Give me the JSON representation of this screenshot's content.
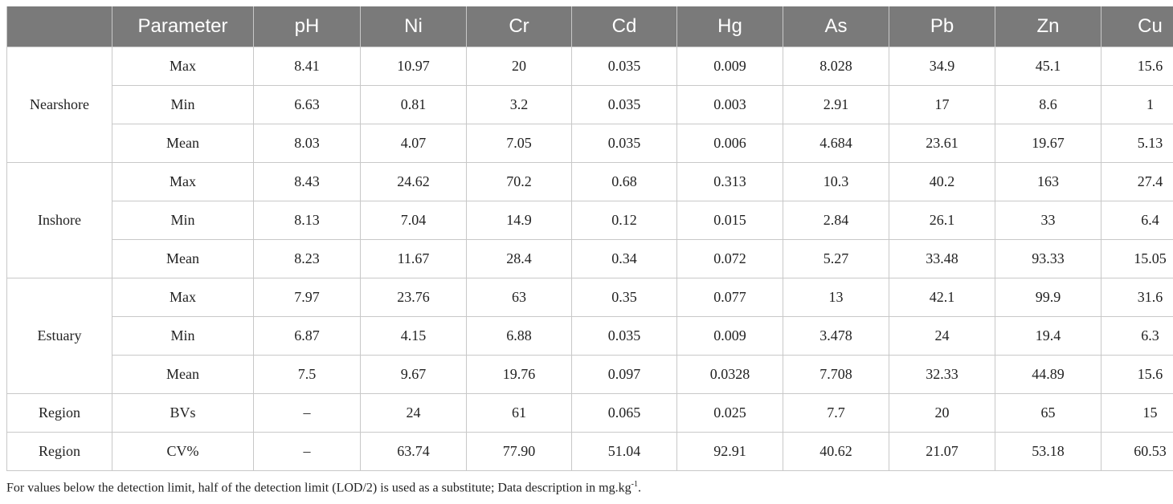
{
  "table": {
    "headers": [
      "",
      "Parameter",
      "pH",
      "Ni",
      "Cr",
      "Cd",
      "Hg",
      "As",
      "Pb",
      "Zn",
      "Cu"
    ],
    "groups": [
      {
        "name": "Nearshore",
        "rows": [
          [
            "Max",
            "8.41",
            "10.97",
            "20",
            "0.035",
            "0.009",
            "8.028",
            "34.9",
            "45.1",
            "15.6"
          ],
          [
            "Min",
            "6.63",
            "0.81",
            "3.2",
            "0.035",
            "0.003",
            "2.91",
            "17",
            "8.6",
            "1"
          ],
          [
            "Mean",
            "8.03",
            "4.07",
            "7.05",
            "0.035",
            "0.006",
            "4.684",
            "23.61",
            "19.67",
            "5.13"
          ]
        ]
      },
      {
        "name": "Inshore",
        "rows": [
          [
            "Max",
            "8.43",
            "24.62",
            "70.2",
            "0.68",
            "0.313",
            "10.3",
            "40.2",
            "163",
            "27.4"
          ],
          [
            "Min",
            "8.13",
            "7.04",
            "14.9",
            "0.12",
            "0.015",
            "2.84",
            "26.1",
            "33",
            "6.4"
          ],
          [
            "Mean",
            "8.23",
            "11.67",
            "28.4",
            "0.34",
            "0.072",
            "5.27",
            "33.48",
            "93.33",
            "15.05"
          ]
        ]
      },
      {
        "name": "Estuary",
        "rows": [
          [
            "Max",
            "7.97",
            "23.76",
            "63",
            "0.35",
            "0.077",
            "13",
            "42.1",
            "99.9",
            "31.6"
          ],
          [
            "Min",
            "6.87",
            "4.15",
            "6.88",
            "0.035",
            "0.009",
            "3.478",
            "24",
            "19.4",
            "6.3"
          ],
          [
            "Mean",
            "7.5",
            "9.67",
            "19.76",
            "0.097",
            "0.0328",
            "7.708",
            "32.33",
            "44.89",
            "15.6"
          ]
        ]
      },
      {
        "name": "Region",
        "rows": [
          [
            "BVs",
            "–",
            "24",
            "61",
            "0.065",
            "0.025",
            "7.7",
            "20",
            "65",
            "15"
          ]
        ]
      },
      {
        "name": "Region",
        "rows": [
          [
            "CV%",
            "–",
            "63.74",
            "77.90",
            "51.04",
            "92.91",
            "40.62",
            "21.07",
            "53.18",
            "60.53"
          ]
        ]
      }
    ]
  },
  "footnote": {
    "text": "For values below the detection limit, half of the detection limit (LOD/2) is used as a substitute; Data description in mg.kg",
    "superscript": "-1",
    "end": "."
  },
  "colors": {
    "header_bg": "#7a7a7a",
    "header_text": "#ffffff",
    "border": "#c8c8c8"
  }
}
